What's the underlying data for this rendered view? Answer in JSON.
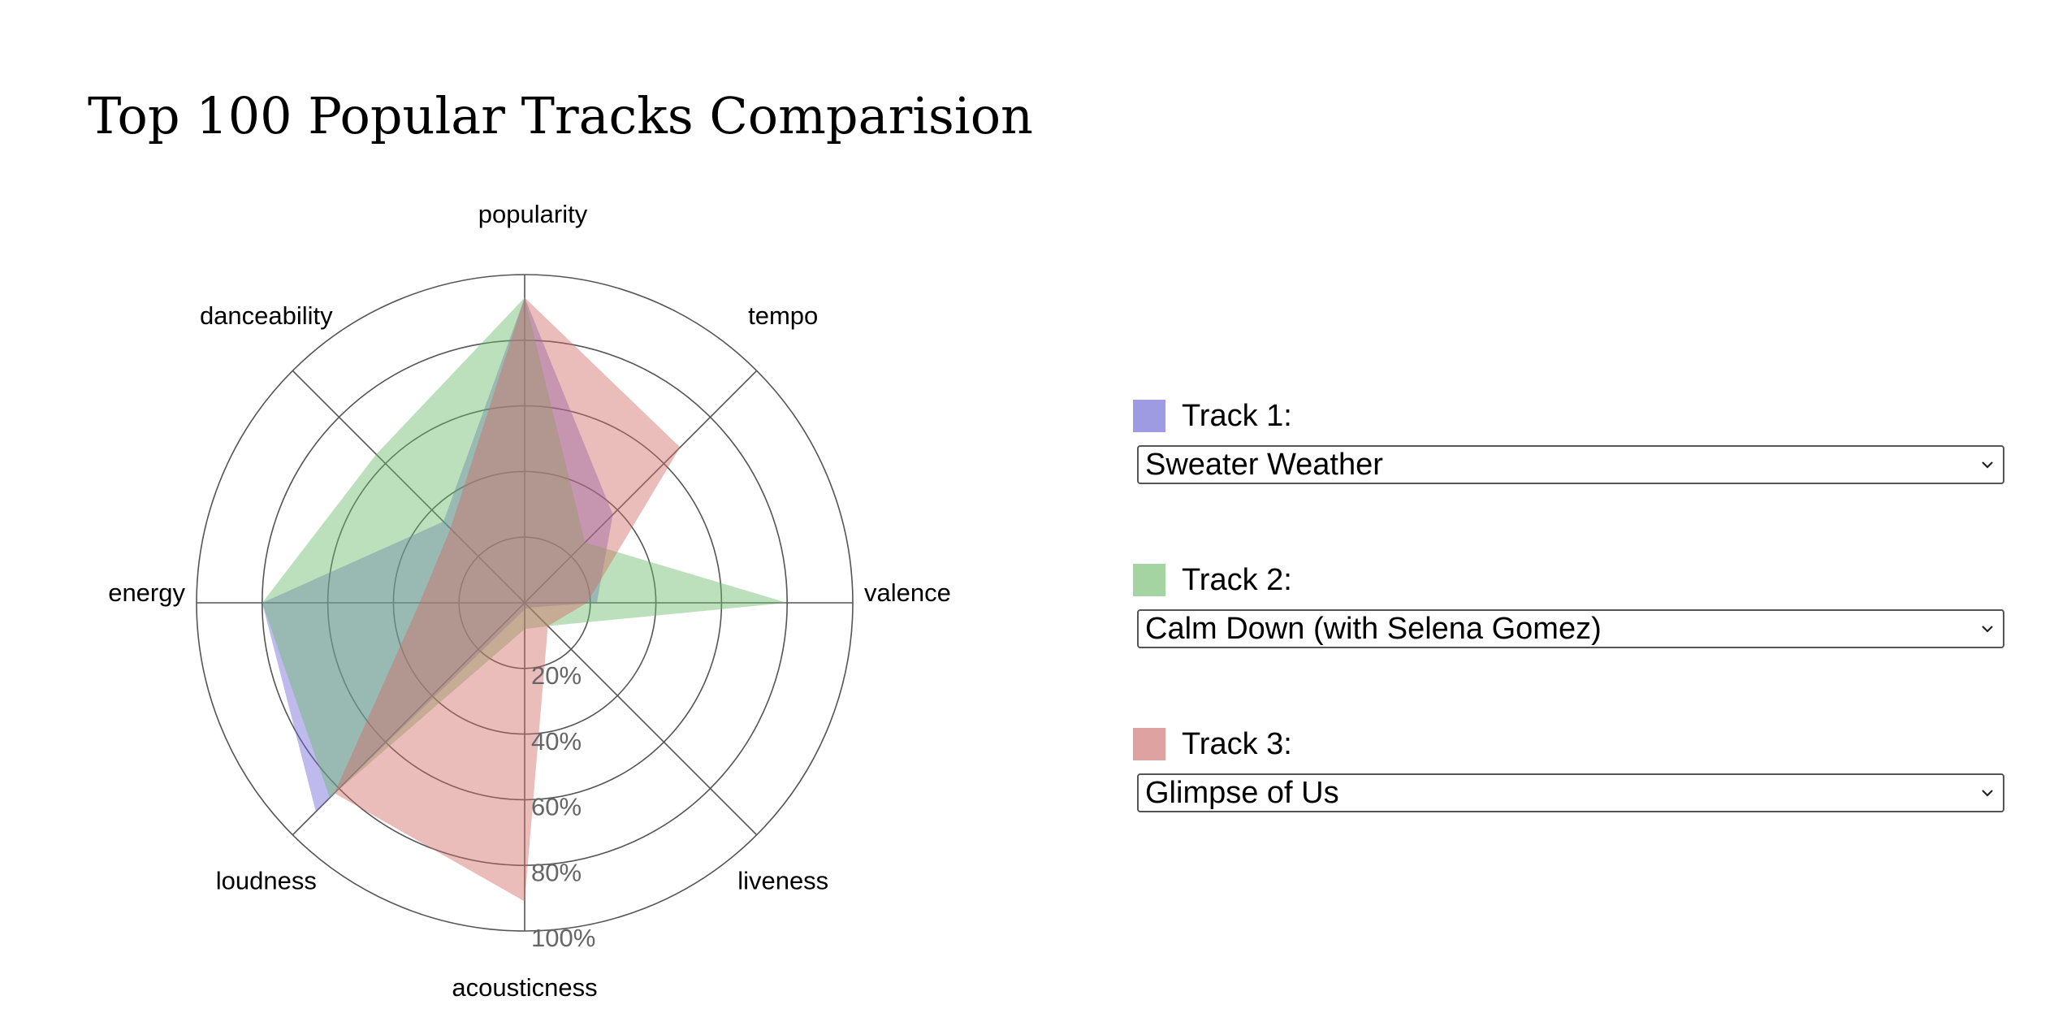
{
  "page": {
    "title": "Top 100 Popular Tracks Comparision"
  },
  "controls": {
    "tracks": [
      {
        "label": "Track 1:",
        "selected": "Sweater Weather",
        "color": "#9f9be3"
      },
      {
        "label": "Track 2:",
        "selected": "Calm Down (with Selena Gomez)",
        "color": "#a3d4a2"
      },
      {
        "label": "Track 3:",
        "selected": "Glimpse of Us",
        "color": "#dea3a0"
      }
    ],
    "dropdown_icon": "chevron-down-icon"
  },
  "chart_data": {
    "type": "radar",
    "axes": [
      "popularity",
      "tempo",
      "valence",
      "liveness",
      "acousticness",
      "loudness",
      "energy",
      "danceability"
    ],
    "ring_labels": [
      "20%",
      "40%",
      "60%",
      "80%",
      "100%"
    ],
    "range": [
      0,
      100
    ],
    "series": [
      {
        "values": [
          93,
          38,
          22,
          2,
          2,
          90,
          80,
          35
        ],
        "color": "#6f66d8"
      },
      {
        "values": [
          93,
          26,
          80,
          10,
          8,
          84,
          80,
          64
        ],
        "color": "#6dbb6b"
      },
      {
        "values": [
          93,
          67,
          19,
          10,
          91,
          82,
          32,
          32
        ],
        "color": "#d06b65"
      }
    ]
  }
}
